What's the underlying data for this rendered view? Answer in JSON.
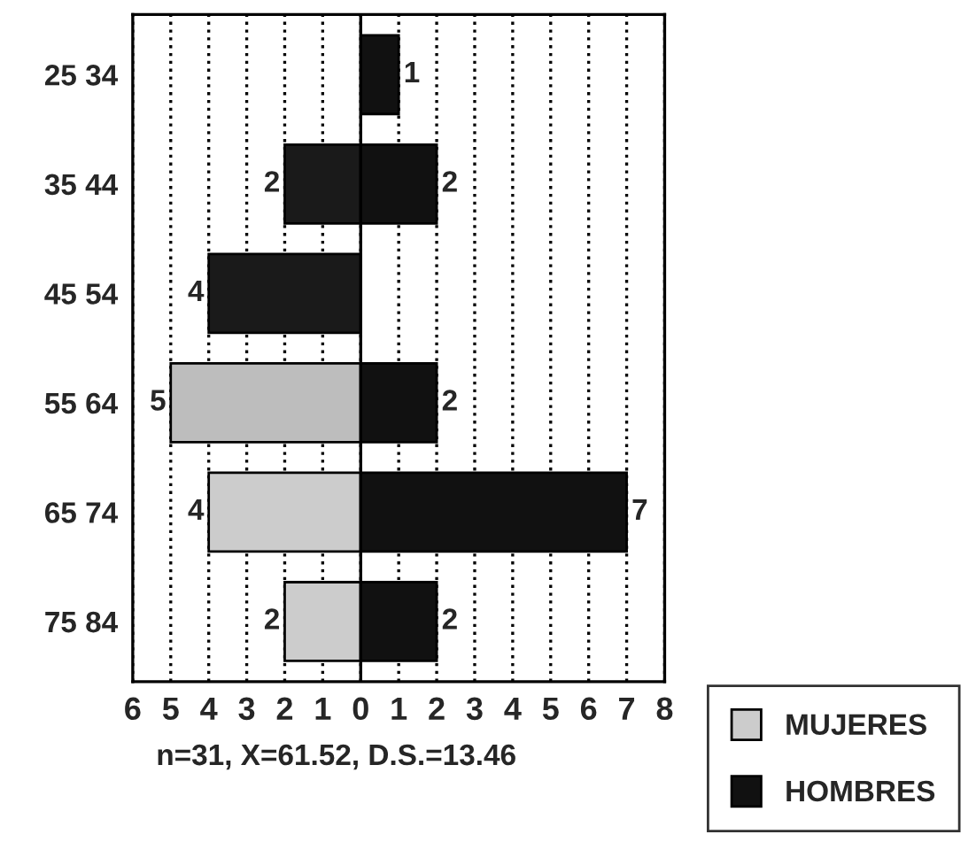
{
  "chart_data": {
    "type": "bar",
    "orientation": "horizontal",
    "categories": [
      "25 34",
      "35 44",
      "45 54",
      "55 64",
      "65 74",
      "75 84"
    ],
    "series": [
      {
        "name": "MUJERES",
        "color": "#cccccc",
        "colors": [
          "#cccccc",
          "#1a1a1a",
          "#1a1a1a",
          "#bdbdbd",
          "#cccccc",
          "#cccccc"
        ],
        "values": [
          null,
          2,
          4,
          5,
          4,
          2
        ],
        "base": [
          null,
          -2,
          -4,
          -5,
          -4,
          -2
        ]
      },
      {
        "name": "HOMBRES",
        "color": "#111111",
        "values": [
          1,
          2,
          null,
          2,
          7,
          2
        ]
      }
    ],
    "data_labels": true,
    "xlim": [
      -6,
      8
    ],
    "xticks": [
      {
        "value": -6,
        "label": "6"
      },
      {
        "value": -5,
        "label": "5"
      },
      {
        "value": -4,
        "label": "4"
      },
      {
        "value": -3,
        "label": "3"
      },
      {
        "value": -2,
        "label": "2"
      },
      {
        "value": -1,
        "label": "1"
      },
      0,
      1,
      2,
      3,
      4,
      5,
      6,
      7,
      8
    ],
    "grid": "x",
    "ref_lines": [
      {
        "axis": "x",
        "value": 0,
        "color": "#000000",
        "line_style": "solid"
      }
    ],
    "legend": "bottom right",
    "annotations": [
      "n=31, X=61.52, D.S.=13.46"
    ]
  }
}
